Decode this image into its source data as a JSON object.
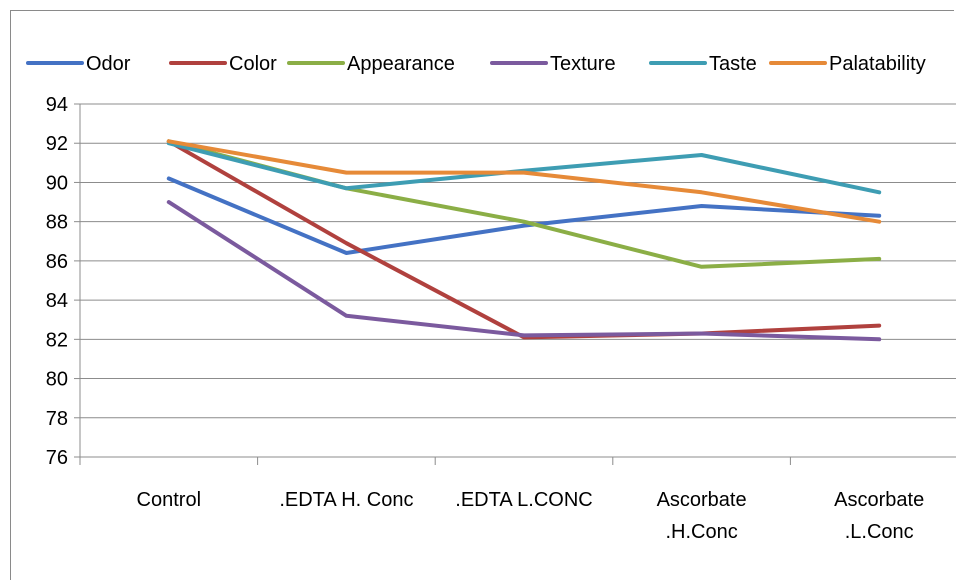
{
  "chart_data": {
    "type": "line",
    "categories": [
      "Control",
      ".EDTA H. Conc",
      ".EDTA L.CONC",
      "Ascorbate .H.Conc",
      "Ascorbate .L.Conc"
    ],
    "category_lines": [
      [
        "Control"
      ],
      [
        ".EDTA H. Conc"
      ],
      [
        ".EDTA L.CONC"
      ],
      [
        "Ascorbate",
        ".H.Conc"
      ],
      [
        "Ascorbate",
        ".L.Conc"
      ]
    ],
    "ylim": [
      76,
      94
    ],
    "yticks": [
      "76",
      "78",
      "80",
      "82",
      "84",
      "86",
      "88",
      "90",
      "92",
      "94"
    ],
    "grid": true,
    "legend_position": "top",
    "series": [
      {
        "name": "Odor",
        "color": "#4472C4",
        "values": [
          90.2,
          86.4,
          87.8,
          88.8,
          88.3
        ]
      },
      {
        "name": "Color",
        "color": "#B0413E",
        "values": [
          92.1,
          86.9,
          82.1,
          82.3,
          82.7
        ]
      },
      {
        "name": "Appearance",
        "color": "#8BAE46",
        "values": [
          92.1,
          89.7,
          88.0,
          85.7,
          86.1
        ]
      },
      {
        "name": "Texture",
        "color": "#7B5A9E",
        "values": [
          89.0,
          83.2,
          82.2,
          82.3,
          82.0
        ]
      },
      {
        "name": "Taste",
        "color": "#3E9DB3",
        "values": [
          92.0,
          89.7,
          90.6,
          91.4,
          89.5
        ]
      },
      {
        "name": "Palatability",
        "color": "#E68A38",
        "values": [
          92.1,
          90.5,
          90.5,
          89.5,
          88.0
        ]
      }
    ]
  }
}
